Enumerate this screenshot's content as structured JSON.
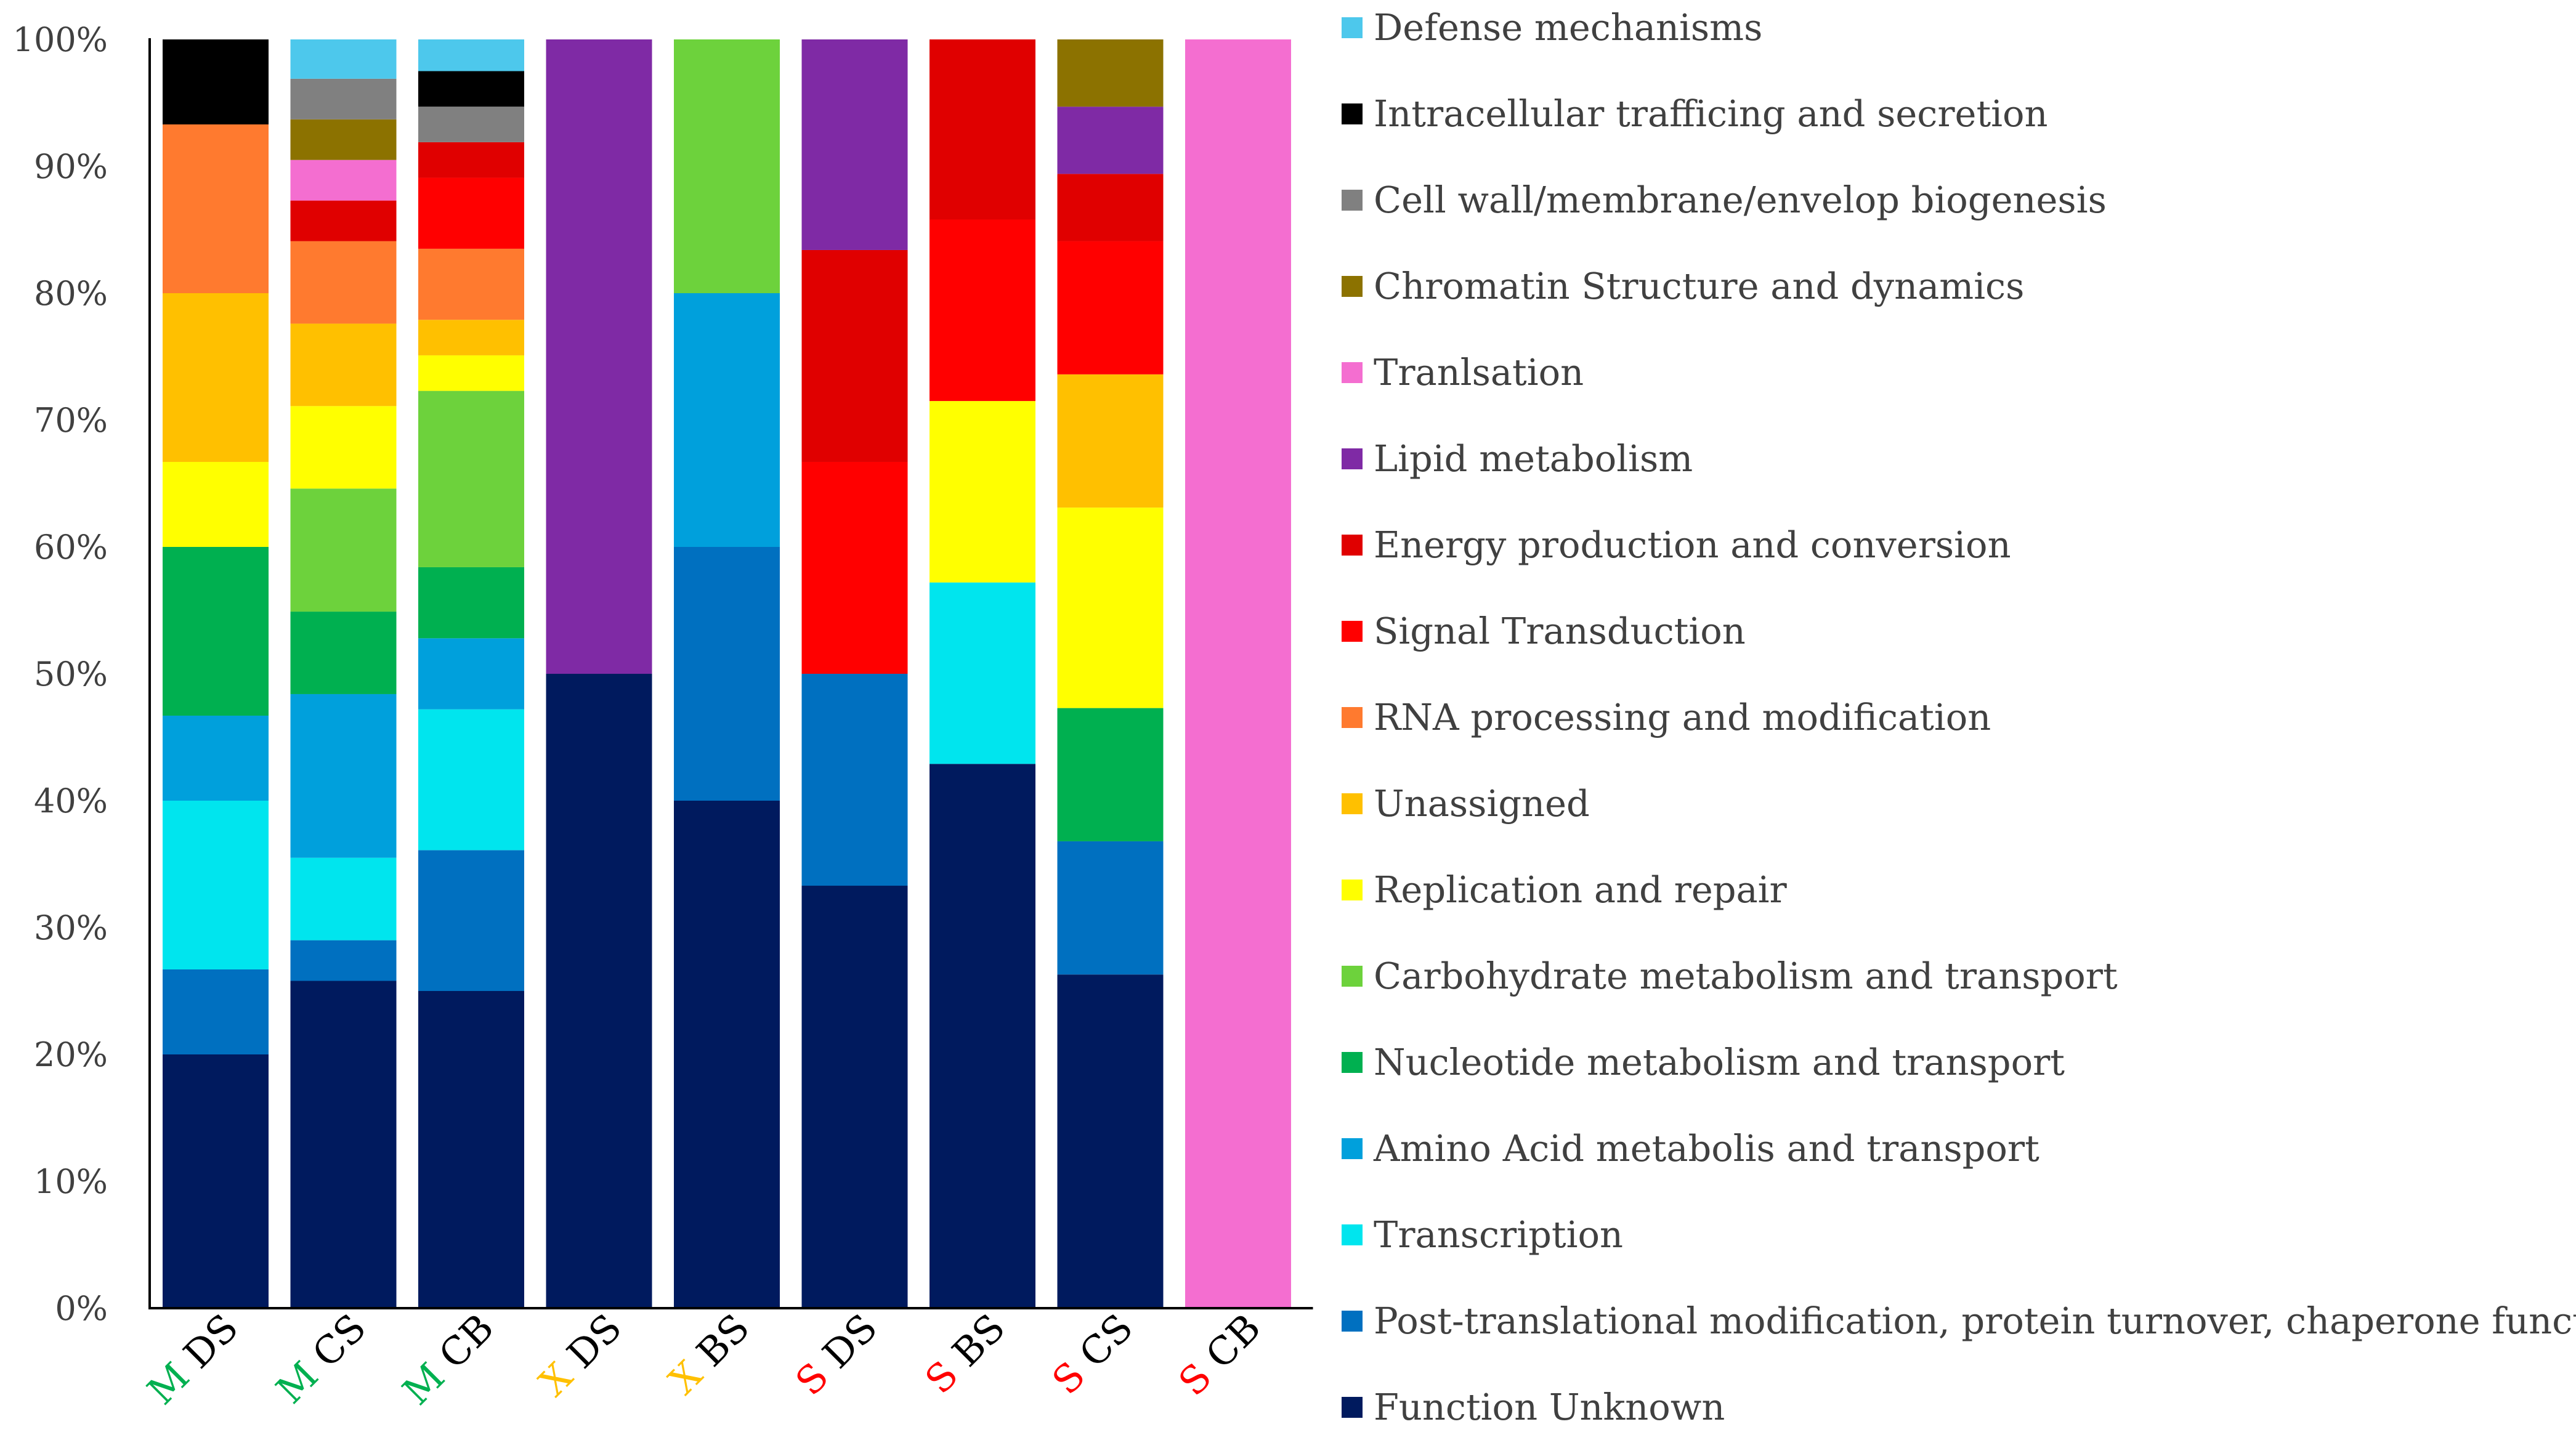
{
  "chart_data": {
    "type": "bar",
    "stacked": true,
    "percent": true,
    "ylim": [
      0,
      100
    ],
    "yticks": [
      0,
      10,
      20,
      30,
      40,
      50,
      60,
      70,
      80,
      90,
      100
    ],
    "ytick_format": "{v}%",
    "legend_position": "right",
    "grid": false,
    "categories": [
      {
        "prefix": "M",
        "prefix_color": "#00B050",
        "label": "DS"
      },
      {
        "prefix": "M",
        "prefix_color": "#00B050",
        "label": "CS"
      },
      {
        "prefix": "M",
        "prefix_color": "#00B050",
        "label": "CB"
      },
      {
        "prefix": "X",
        "prefix_color": "#FFC000",
        "label": "DS"
      },
      {
        "prefix": "X",
        "prefix_color": "#FFC000",
        "label": "BS"
      },
      {
        "prefix": "S",
        "prefix_color": "#FF0000",
        "label": "DS"
      },
      {
        "prefix": "S",
        "prefix_color": "#FF0000",
        "label": "BS"
      },
      {
        "prefix": "S",
        "prefix_color": "#FF0000",
        "label": "CS"
      },
      {
        "prefix": "S",
        "prefix_color": "#FF0000",
        "label": "CB"
      }
    ],
    "series": [
      {
        "name": "Function Unknown",
        "color": "#001A5E",
        "values": [
          20.0,
          25.8,
          25.0,
          50.0,
          40.0,
          33.3,
          42.9,
          26.3,
          0
        ]
      },
      {
        "name": "Post-translational modification, protein turnover, chaperone functions",
        "color": "#0070C0",
        "values": [
          6.7,
          3.2,
          11.1,
          0,
          20.0,
          16.7,
          0,
          10.5,
          0
        ]
      },
      {
        "name": "Transcription",
        "color": "#00E5EE",
        "values": [
          13.3,
          6.5,
          11.1,
          0,
          0,
          0,
          14.3,
          0,
          0
        ]
      },
      {
        "name": "Amino Acid metabolis and transport",
        "color": "#00A0DC",
        "values": [
          6.7,
          12.9,
          5.6,
          0,
          20.0,
          0,
          0,
          0,
          0
        ]
      },
      {
        "name": "Nucleotide metabolism and transport",
        "color": "#00B050",
        "values": [
          13.3,
          6.5,
          5.6,
          0,
          0,
          0,
          0,
          10.5,
          0
        ]
      },
      {
        "name": "Carbohydrate metabolism and transport",
        "color": "#6DD23C",
        "values": [
          0,
          9.7,
          13.9,
          0,
          20.0,
          0,
          0,
          0,
          0
        ]
      },
      {
        "name": "Replication and repair",
        "color": "#FFFF00",
        "values": [
          6.7,
          6.5,
          2.8,
          0,
          0,
          0,
          14.3,
          15.8,
          0
        ]
      },
      {
        "name": "Unassigned",
        "color": "#FFC000",
        "values": [
          13.3,
          6.5,
          2.8,
          0,
          0,
          0,
          0,
          10.5,
          0
        ]
      },
      {
        "name": "RNA processing and modification",
        "color": "#FF7A2F",
        "values": [
          13.3,
          6.5,
          5.6,
          0,
          0,
          0,
          0,
          0,
          0
        ]
      },
      {
        "name": "Signal Transduction",
        "color": "#FF0000",
        "values": [
          0,
          0,
          5.6,
          0,
          0,
          16.7,
          14.3,
          10.5,
          0
        ]
      },
      {
        "name": "Energy production and conversion",
        "color": "#E00000",
        "values": [
          0,
          3.2,
          2.8,
          0,
          0,
          16.7,
          14.3,
          5.3,
          0
        ]
      },
      {
        "name": "Lipid metabolism",
        "color": "#7F2AA5",
        "values": [
          0,
          0,
          0,
          50.0,
          0,
          16.7,
          0,
          5.3,
          0
        ]
      },
      {
        "name": "Tranlsation",
        "color": "#F46ED0",
        "values": [
          0,
          3.2,
          0,
          0,
          0,
          0,
          0,
          0,
          100.0
        ]
      },
      {
        "name": "Chromatin Structure and dynamics",
        "color": "#8C7200",
        "values": [
          0,
          3.2,
          0,
          0,
          0,
          0,
          0,
          5.3,
          0
        ]
      },
      {
        "name": "Cell wall/membrane/envelop biogenesis",
        "color": "#808080",
        "values": [
          0,
          3.2,
          2.8,
          0,
          0,
          0,
          0,
          0,
          0
        ]
      },
      {
        "name": "Intracellular trafficing and secretion",
        "color": "#000000",
        "values": [
          6.7,
          0,
          2.8,
          0,
          0,
          0,
          0,
          0,
          0
        ]
      },
      {
        "name": "Defense mechanisms",
        "color": "#4DC8EC",
        "values": [
          0,
          3.2,
          2.8,
          0,
          0,
          0,
          0,
          0,
          0
        ]
      }
    ]
  }
}
